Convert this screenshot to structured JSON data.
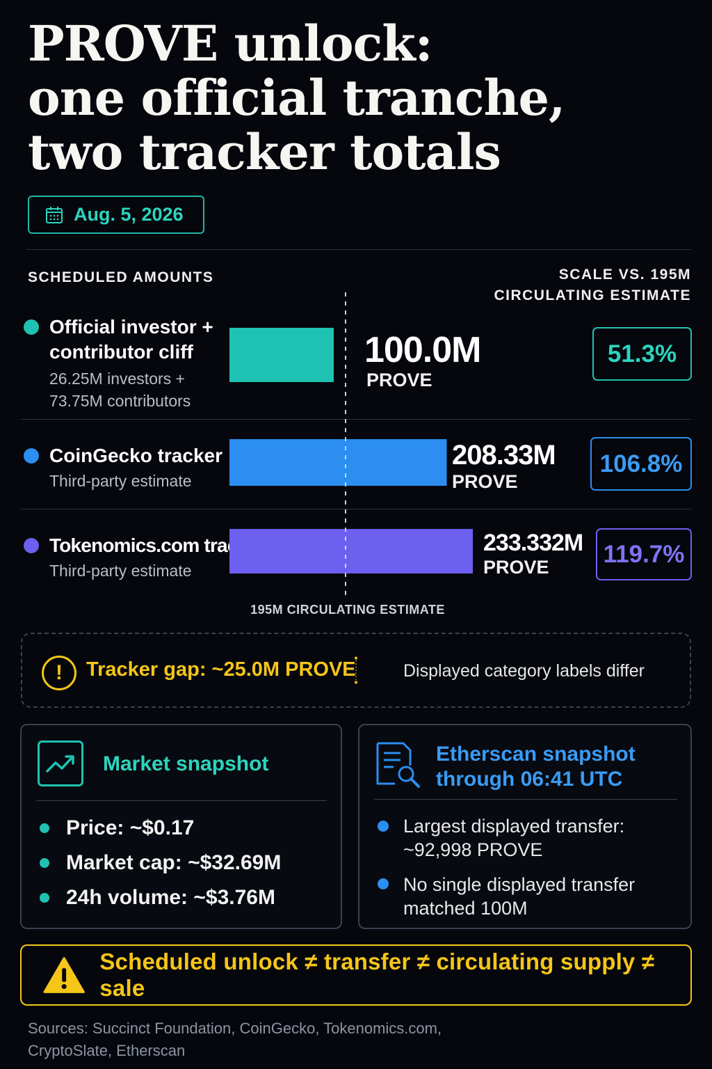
{
  "title": {
    "line1": "PROVE unlock:",
    "line2": "one official tranche,",
    "line3": "two tracker totals"
  },
  "date": "Aug. 5, 2026",
  "sections": {
    "left_label": "SCHEDULED AMOUNTS",
    "right_label_line1": "SCALE VS. 195M",
    "right_label_line2": "CIRCULATING ESTIMATE"
  },
  "chart_data": {
    "type": "bar",
    "orientation": "horizontal",
    "unit": "PROVE",
    "reference_value": 195,
    "reference_label": "195M CIRCULATING ESTIMATE",
    "categories": [
      "Official investor + contributor cliff",
      "CoinGecko tracker",
      "Tokenomics.com tracker"
    ],
    "rows": [
      {
        "label_line1": "Official investor +",
        "label_line2": "contributor cliff",
        "sub_line1": "26.25M investors +",
        "sub_line2": "73.75M contributors",
        "value": 100.0,
        "value_label": "100.0M",
        "unit_label": "PROVE",
        "pct_label": "51.3%",
        "color": "#1fc2b2"
      },
      {
        "label_line1": "CoinGecko tracker",
        "sub_line1": "Third-party estimate",
        "value": 208.33,
        "value_label": "208.33M",
        "unit_label": "PROVE",
        "pct_label": "106.8%",
        "color": "#2b8ef0"
      },
      {
        "label_line1": "Tokenomics.com tracker",
        "sub_line1": "Third-party estimate",
        "value": 233.332,
        "value_label": "233.332M",
        "unit_label": "PROVE",
        "pct_label": "119.7%",
        "color": "#6d5ff0"
      }
    ]
  },
  "gap": {
    "text": "Tracker gap: ~25.0M PROVE",
    "note": "Displayed category labels differ"
  },
  "market": {
    "title": "Market snapshot",
    "items": [
      "Price:  ~$0.17",
      "Market cap: ~$32.69M",
      "24h volume: ~$3.76M"
    ]
  },
  "etherscan": {
    "title_line1": "Etherscan snapshot",
    "title_line2": "through 06:41 UTC",
    "item1_line1": "Largest displayed transfer:",
    "item1_line2": "~92,998 PROVE",
    "item2_line1": "No single displayed transfer",
    "item2_line2": "matched 100M"
  },
  "warning": "Scheduled unlock ≠ transfer ≠ circulating supply ≠ sale",
  "sources": {
    "line1": "Sources: Succinct Foundation, CoinGecko, Tokenomics.com,",
    "line2": "CryptoSlate, Etherscan"
  },
  "colors": {
    "teal": "#1fc2b2",
    "blue": "#2b8ef0",
    "purple": "#6d5ff0",
    "yellow": "#f5c518",
    "background": "#05070c"
  }
}
